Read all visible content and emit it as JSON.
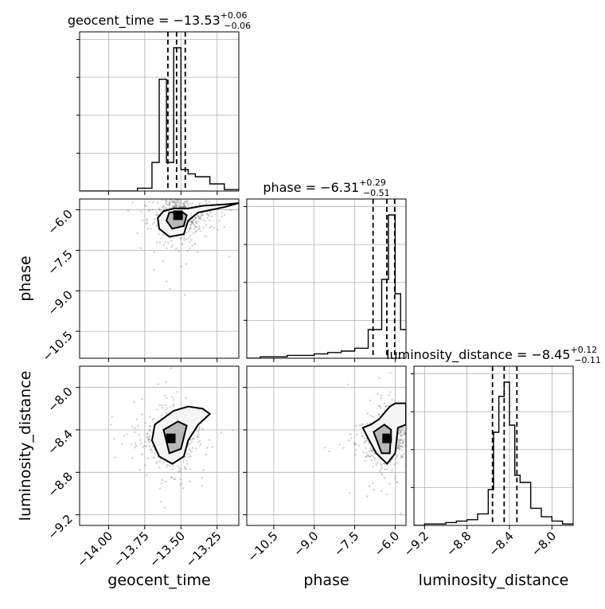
{
  "figure": {
    "panel_titles": {
      "geocent_time": {
        "prefix": "geocent_time = −13.53",
        "sup": "+0.06",
        "sub": "−0.06"
      },
      "phase": {
        "prefix": "phase = −6.31",
        "sup": "+0.29",
        "sub": "−0.51"
      },
      "luminosity_distance": {
        "prefix": "luminosity_distance = −8.45",
        "sup": "+0.12",
        "sub": "−0.11"
      }
    },
    "axis_labels": {
      "geocent_time": "geocent_time",
      "phase": "phase",
      "luminosity_distance": "luminosity_distance"
    }
  },
  "chart_data": {
    "type": "corner",
    "parameters": [
      "geocent_time",
      "phase",
      "luminosity_distance"
    ],
    "ranges": {
      "geocent_time": [
        -14.2,
        -13.1
      ],
      "phase": [
        -11.5,
        -5.6
      ],
      "luminosity_distance": [
        -9.3,
        -7.8
      ]
    },
    "ticks": {
      "geocent_time": {
        "values": [
          -14.0,
          -13.75,
          -13.5,
          -13.25
        ],
        "labels": [
          "−14.00",
          "−13.75",
          "−13.50",
          "−13.25"
        ]
      },
      "phase": {
        "values": [
          -10.5,
          -9.0,
          -7.5,
          -6.0
        ],
        "labels": [
          "−10.5",
          "−9.0",
          "−7.5",
          "−6.0"
        ]
      },
      "luminosity_distance": {
        "values": [
          -9.2,
          -8.8,
          -8.4,
          -8.0
        ],
        "labels": [
          "−9.2",
          "−8.8",
          "−8.4",
          "−8.0"
        ]
      }
    },
    "grid": true,
    "histograms": {
      "geocent_time": {
        "bin_edges": [
          -14.2,
          -14.1,
          -14.0,
          -13.9,
          -13.8,
          -13.7,
          -13.65,
          -13.6,
          -13.55,
          -13.5,
          -13.45,
          -13.4,
          -13.3,
          -13.2,
          -13.1
        ],
        "counts": [
          0,
          0,
          0,
          0,
          0.02,
          0.2,
          0.78,
          0.2,
          1.0,
          0.15,
          0.12,
          0.1,
          0.05,
          0.01
        ],
        "quantiles": [
          -13.59,
          -13.53,
          -13.47
        ]
      },
      "phase": {
        "bin_edges": [
          -11.5,
          -11.0,
          -10.5,
          -10.0,
          -9.5,
          -9.0,
          -8.5,
          -8.0,
          -7.5,
          -7.0,
          -6.5,
          -6.25,
          -6.0,
          -5.8,
          -5.6
        ],
        "counts": [
          0.0,
          0.01,
          0.01,
          0.02,
          0.02,
          0.03,
          0.04,
          0.05,
          0.07,
          0.2,
          0.55,
          1.0,
          0.45,
          0.2
        ],
        "quantiles": [
          -6.82,
          -6.31,
          -6.02
        ]
      },
      "luminosity_distance": {
        "bin_edges": [
          -9.3,
          -9.2,
          -9.1,
          -9.0,
          -8.9,
          -8.8,
          -8.7,
          -8.6,
          -8.55,
          -8.5,
          -8.45,
          -8.4,
          -8.35,
          -8.3,
          -8.2,
          -8.1,
          -8.0,
          -7.9,
          -7.8
        ],
        "counts": [
          0.0,
          0.01,
          0.01,
          0.02,
          0.03,
          0.04,
          0.08,
          0.25,
          0.65,
          0.9,
          1.0,
          0.7,
          0.35,
          0.3,
          0.12,
          0.06,
          0.03,
          0.01
        ],
        "quantiles": [
          -8.56,
          -8.45,
          -8.33
        ]
      }
    },
    "pairs": [
      {
        "x": "geocent_time",
        "y": "phase",
        "peak": [
          -13.52,
          -6.2
        ],
        "contours": [
          [
            [
              -13.62,
              -6.05
            ],
            [
              -13.55,
              -5.95
            ],
            [
              -13.45,
              -5.95
            ],
            [
              -13.35,
              -5.85
            ],
            [
              -13.2,
              -5.8
            ],
            [
              -13.1,
              -5.75
            ],
            [
              -13.2,
              -5.9
            ],
            [
              -13.38,
              -6.1
            ],
            [
              -13.45,
              -6.4
            ],
            [
              -13.48,
              -6.9
            ],
            [
              -13.58,
              -7.0
            ],
            [
              -13.65,
              -6.7
            ],
            [
              -13.66,
              -6.3
            ]
          ],
          [
            [
              -13.58,
              -6.1
            ],
            [
              -13.5,
              -6.05
            ],
            [
              -13.46,
              -6.2
            ],
            [
              -13.48,
              -6.6
            ],
            [
              -13.56,
              -6.7
            ],
            [
              -13.6,
              -6.4
            ]
          ]
        ]
      },
      {
        "x": "geocent_time",
        "y": "luminosity_distance",
        "peak": [
          -13.57,
          -8.48
        ],
        "contours": [
          [
            [
              -13.68,
              -8.35
            ],
            [
              -13.55,
              -8.22
            ],
            [
              -13.45,
              -8.18
            ],
            [
              -13.35,
              -8.2
            ],
            [
              -13.3,
              -8.25
            ],
            [
              -13.38,
              -8.35
            ],
            [
              -13.45,
              -8.5
            ],
            [
              -13.48,
              -8.65
            ],
            [
              -13.56,
              -8.72
            ],
            [
              -13.65,
              -8.65
            ],
            [
              -13.7,
              -8.5
            ]
          ],
          [
            [
              -13.62,
              -8.4
            ],
            [
              -13.52,
              -8.32
            ],
            [
              -13.46,
              -8.36
            ],
            [
              -13.5,
              -8.58
            ],
            [
              -13.58,
              -8.62
            ]
          ]
        ]
      },
      {
        "x": "phase",
        "y": "luminosity_distance",
        "peak": [
          -6.3,
          -8.48
        ],
        "contours": [
          [
            [
              -7.2,
              -8.38
            ],
            [
              -6.9,
              -8.35
            ],
            [
              -6.6,
              -8.3
            ],
            [
              -6.2,
              -8.18
            ],
            [
              -6.0,
              -8.15
            ],
            [
              -5.6,
              -8.15
            ],
            [
              -5.6,
              -8.35
            ],
            [
              -5.9,
              -8.38
            ],
            [
              -6.0,
              -8.62
            ],
            [
              -6.3,
              -8.72
            ],
            [
              -6.7,
              -8.62
            ],
            [
              -7.0,
              -8.48
            ]
          ],
          [
            [
              -6.8,
              -8.42
            ],
            [
              -6.4,
              -8.35
            ],
            [
              -6.15,
              -8.4
            ],
            [
              -6.2,
              -8.62
            ],
            [
              -6.5,
              -8.62
            ]
          ]
        ]
      }
    ]
  }
}
